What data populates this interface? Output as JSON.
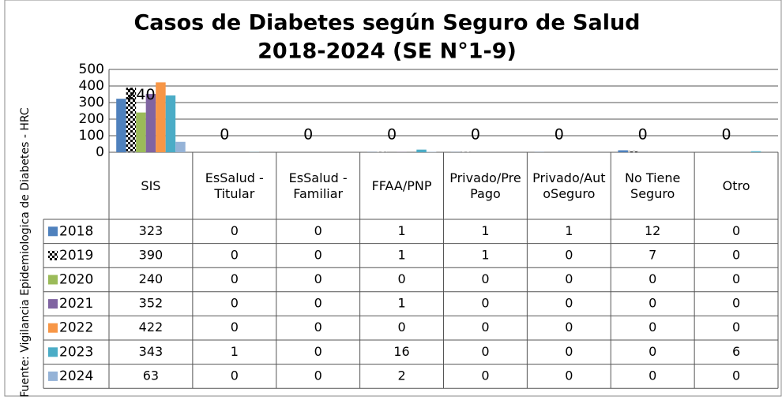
{
  "chart_data": {
    "type": "bar",
    "title": [
      "Casos de Diabetes según Seguro de Salud",
      "2018-2024 (SE N°1-9)"
    ],
    "y_axis_label": "Fuente: Vigilancia Epidemiologica de Diabetes - HRC",
    "categories": [
      "SIS",
      "EsSalud - Titular",
      "EsSalud - Familiar",
      "FFAA/PNP",
      "Privado/PrePago",
      "Privado/AutoSeguro",
      "No Tiene Seguro",
      "Otro"
    ],
    "series": [
      {
        "name": "2018",
        "color": "#4f81bd",
        "values": [
          323,
          0,
          0,
          1,
          1,
          1,
          12,
          0
        ]
      },
      {
        "name": "2019",
        "color": "pattern",
        "values": [
          390,
          0,
          0,
          1,
          1,
          0,
          7,
          0
        ]
      },
      {
        "name": "2020",
        "color": "#9bbb59",
        "values": [
          240,
          0,
          0,
          0,
          0,
          0,
          0,
          0
        ],
        "data_labels": true
      },
      {
        "name": "2021",
        "color": "#8064a2",
        "values": [
          352,
          0,
          0,
          1,
          0,
          0,
          0,
          0
        ]
      },
      {
        "name": "2022",
        "color": "#f79646",
        "values": [
          422,
          0,
          0,
          0,
          0,
          0,
          0,
          0
        ]
      },
      {
        "name": "2023",
        "color": "#4bacc6",
        "values": [
          343,
          1,
          0,
          16,
          0,
          0,
          0,
          6
        ]
      },
      {
        "name": "2024",
        "color": "#95b3d7",
        "values": [
          63,
          0,
          0,
          2,
          0,
          0,
          0,
          0
        ]
      }
    ],
    "ylim": [
      0,
      500
    ],
    "yticks": [
      0,
      100,
      200,
      300,
      400,
      500
    ],
    "grid": true,
    "data_table": true
  }
}
